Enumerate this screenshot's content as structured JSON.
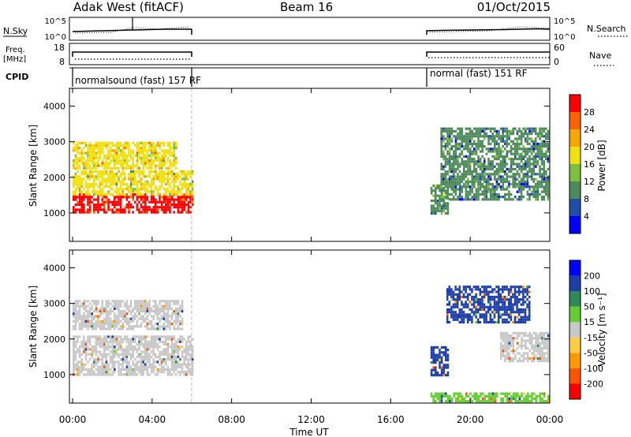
{
  "header": {
    "title": "Adak West (fitACF)",
    "beam": "Beam 16",
    "date": "01/Oct/2015"
  },
  "top_panels": {
    "nsky_label": "N.Sky",
    "nsky_ticks": [
      "10^5",
      "10^0"
    ],
    "nsearch_label": "N.Search",
    "nsearch_ticks": [
      "10^5",
      "10^0"
    ],
    "freq_label": "Freq.",
    "freq_unit": "[MHz]",
    "freq_ticks": [
      "18",
      "8"
    ],
    "nave_label": "Nave",
    "nave_ticks": [
      "60",
      "0"
    ],
    "cpid_label": "CPID",
    "cpid_segments": [
      {
        "label": "normalsound (fast) 157 RF",
        "start": "00:00",
        "end": "06:00"
      },
      {
        "label": "normal (fast) 151 RF",
        "start": "18:00",
        "end": "24:00"
      }
    ]
  },
  "x_axis": {
    "label": "Time UT",
    "ticks": [
      "00:00",
      "04:00",
      "08:00",
      "12:00",
      "16:00",
      "20:00",
      "00:00"
    ],
    "range_hours": [
      0,
      24
    ]
  },
  "colors": {
    "power_scale": [
      "#0000ff",
      "#1f4fa8",
      "#4f8a5a",
      "#7cc040",
      "#f0e010",
      "#f7a800",
      "#ff6000",
      "#ff0000"
    ],
    "velocity_scale": [
      "#ff0000",
      "#ff5500",
      "#ff9900",
      "#ffcc44",
      "#c8c8c8",
      "#66cc33",
      "#2e8b57",
      "#1f3fa8",
      "#0000ff"
    ],
    "ground_scatter": "#bfbfbf"
  },
  "chart_data": [
    {
      "type": "heatmap",
      "panel": "power",
      "ylabel": "Slant Range [km]",
      "ylim": [
        200,
        4500
      ],
      "yticks": [
        1000,
        2000,
        3000,
        4000
      ],
      "colorbar": {
        "label": "Power [dB]",
        "ticks": [
          "28",
          "24",
          "20",
          "16",
          "12",
          "8",
          "4"
        ],
        "range": [
          0,
          30
        ]
      },
      "regions": [
        {
          "name": "",
          "t_start": 0.0,
          "t_end": 6.0,
          "range_low": 1050,
          "range_high": 1550,
          "value_db": 28
        },
        {
          "name": "",
          "t_start": 0.0,
          "t_end": 6.0,
          "range_low": 1550,
          "range_high": 2200,
          "value_db": 16
        },
        {
          "name": "",
          "t_start": 0.0,
          "t_end": 5.2,
          "range_low": 2250,
          "range_high": 3000,
          "value_db": 18
        },
        {
          "name": "",
          "t_start": 18.0,
          "t_end": 18.9,
          "range_low": 1000,
          "range_high": 1800,
          "value_db": 10
        },
        {
          "name": "",
          "t_start": 18.5,
          "t_end": 24.0,
          "range_low": 1400,
          "range_high": 3400,
          "value_db": 8
        }
      ]
    },
    {
      "type": "heatmap",
      "panel": "velocity",
      "ylabel": "Slant Range [km]",
      "ylim": [
        200,
        4500
      ],
      "yticks": [
        1000,
        2000,
        3000,
        4000
      ],
      "colorbar": {
        "label": "Velocity [m s⁻¹]",
        "ticks": [
          "200",
          "100",
          "50",
          "15",
          "-15",
          "-50",
          "-100",
          "-200"
        ],
        "range": [
          -250,
          250
        ]
      },
      "regions": [
        {
          "name": "",
          "t_start": 0.0,
          "t_end": 6.0,
          "range_low": 1000,
          "range_high": 2100,
          "value_ms": 0
        },
        {
          "name": "",
          "t_start": 0.0,
          "t_end": 5.5,
          "range_low": 2300,
          "range_high": 3100,
          "value_ms": 0
        },
        {
          "name": "",
          "t_start": 18.0,
          "t_end": 18.9,
          "range_low": 1000,
          "range_high": 1800,
          "value_ms": 180
        },
        {
          "name": "",
          "t_start": 18.8,
          "t_end": 23.0,
          "range_low": 2500,
          "range_high": 3500,
          "value_ms": 200
        },
        {
          "name": "",
          "t_start": 21.5,
          "t_end": 24.0,
          "range_low": 1400,
          "range_high": 2200,
          "value_ms": 0
        },
        {
          "name": "",
          "t_start": 18.0,
          "t_end": 24.0,
          "range_low": 200,
          "range_high": 500,
          "value_ms": 40
        }
      ]
    }
  ]
}
